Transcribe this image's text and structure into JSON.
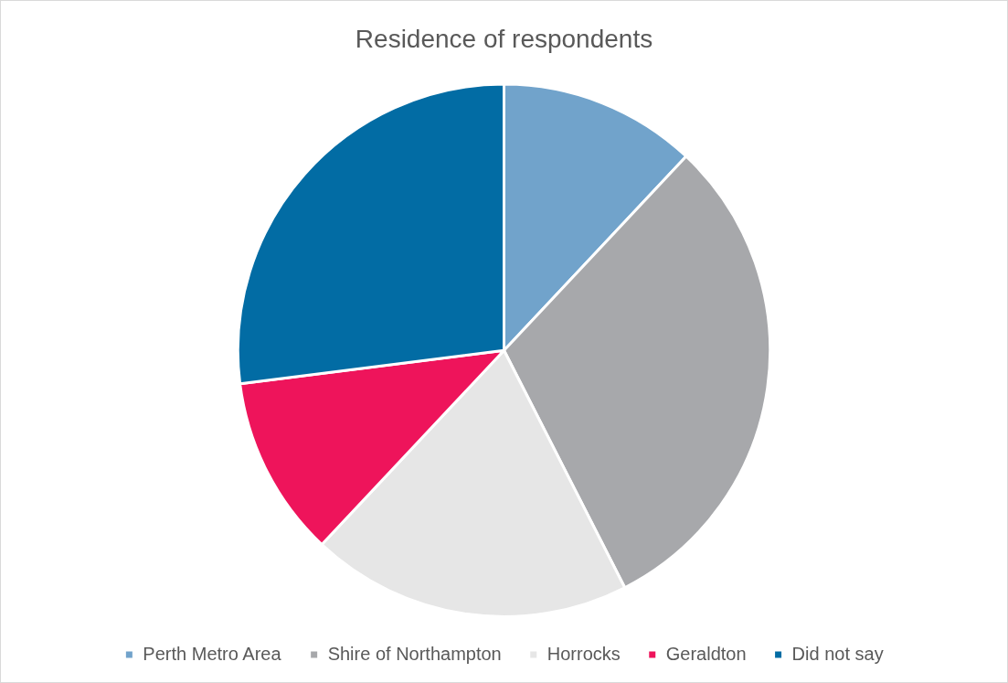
{
  "chart_data": {
    "type": "pie",
    "title": "Residence of respondents",
    "categories": [
      "Perth Metro Area",
      "Shire of Northampton",
      "Horrocks",
      "Geraldton",
      "Did not say"
    ],
    "values": [
      12,
      30.5,
      19.5,
      11,
      27
    ],
    "colors": [
      "#71a3cb",
      "#a7a8ab",
      "#e6e6e6",
      "#ee145b",
      "#026ca4"
    ],
    "legend": "bottom"
  }
}
